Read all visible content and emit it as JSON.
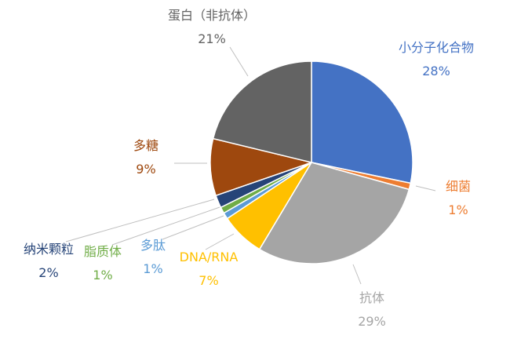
{
  "chart_data": {
    "type": "pie",
    "title": "",
    "slices": [
      {
        "name": "小分子化合物",
        "value": 28,
        "display": "28%",
        "color": "#4472C4"
      },
      {
        "name": "细菌",
        "value": 1,
        "display": "1%",
        "color": "#ED7D31"
      },
      {
        "name": "抗体",
        "value": 29,
        "display": "29%",
        "color": "#A5A5A5"
      },
      {
        "name": "DNA/RNA",
        "value": 7,
        "display": "7%",
        "color": "#FFC000"
      },
      {
        "name": "多肽",
        "value": 1,
        "display": "1%",
        "color": "#5B9BD5"
      },
      {
        "name": "脂质体",
        "value": 1,
        "display": "1%",
        "color": "#70AD47"
      },
      {
        "name": "纳米颗粒",
        "value": 2,
        "display": "2%",
        "color": "#264478"
      },
      {
        "name": "多糖",
        "value": 9,
        "display": "9%",
        "color": "#9E480E"
      },
      {
        "name": "蛋白（非抗体）",
        "value": 21,
        "display": "21%",
        "color": "#636363"
      }
    ],
    "legend": "none",
    "data_labels": "outside with leader lines"
  }
}
